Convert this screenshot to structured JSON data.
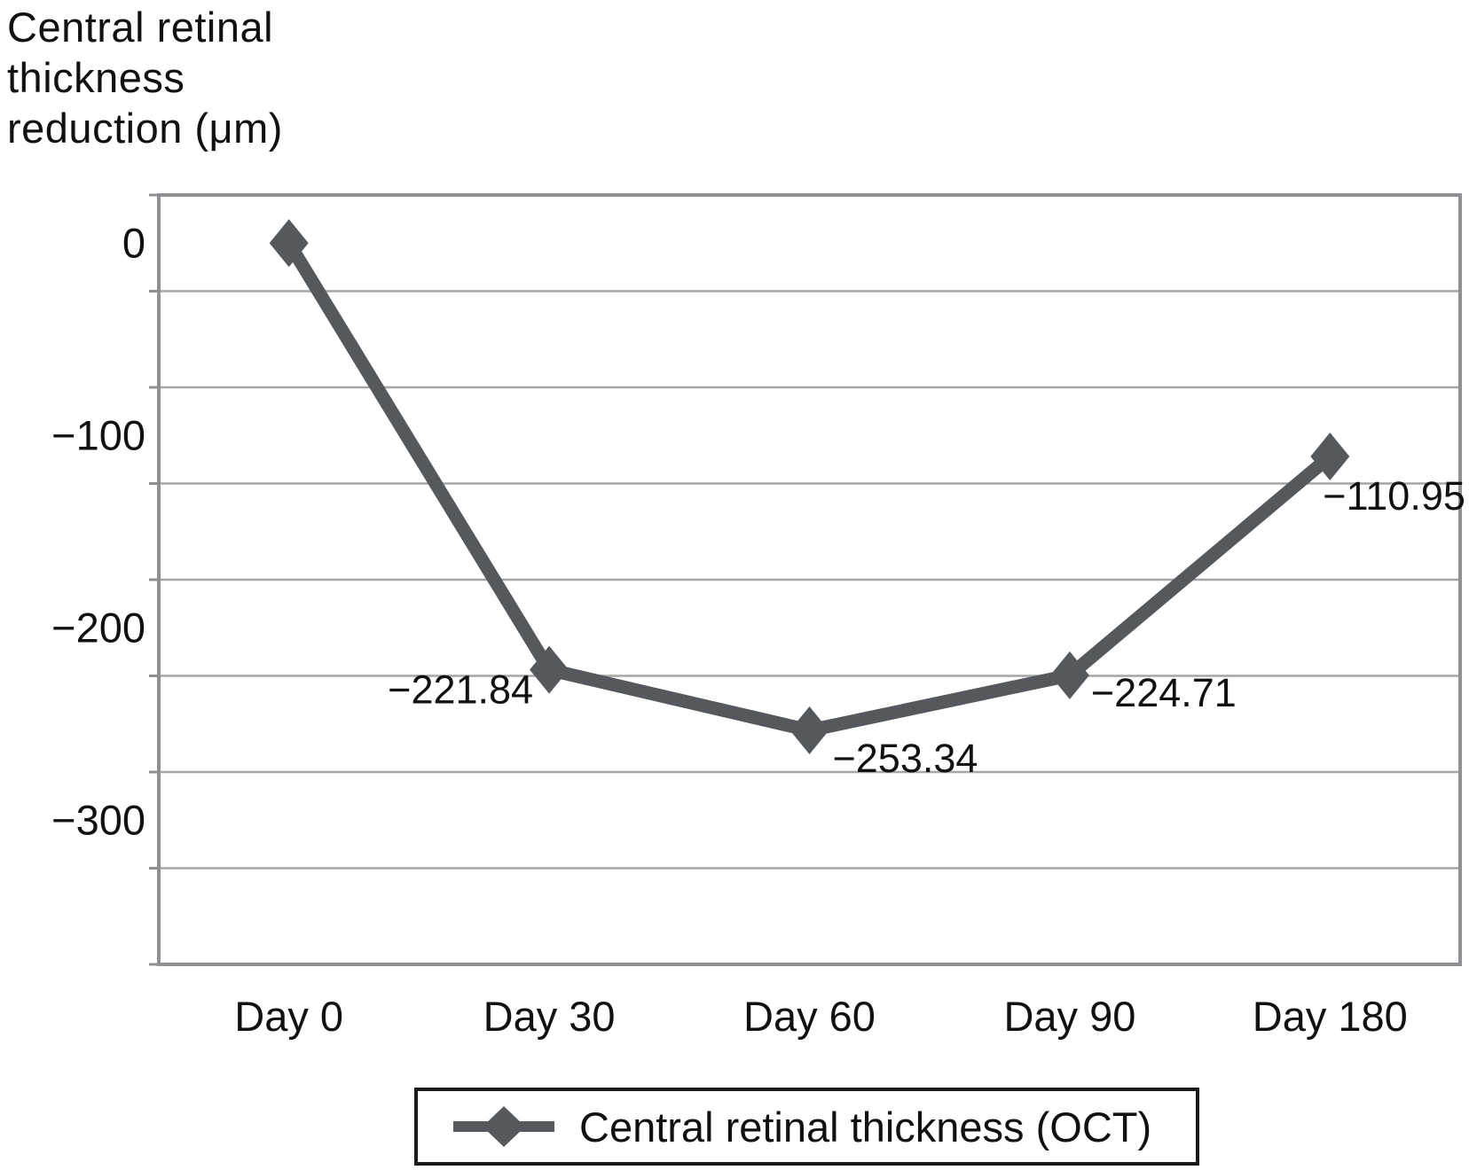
{
  "title": {
    "lines": [
      "Central retinal",
      "thickness",
      "reduction (μm)"
    ]
  },
  "colors": {
    "series": "#55585c",
    "gridline": "#a6a6a6",
    "plot_border": "#8e9093",
    "text": "#111111",
    "legend_border": "#1a1a1a",
    "background": "#ffffff"
  },
  "chart_data": {
    "type": "line",
    "title": "Central retinal thickness reduction (μm)",
    "categories": [
      "Day 0",
      "Day 30",
      "Day 60",
      "Day 90",
      "Day 180"
    ],
    "series": [
      {
        "name": "Central retinal thickness (OCT)",
        "values": [
          0,
          -221.84,
          -253.34,
          -224.71,
          -110.95
        ]
      }
    ],
    "point_labels": [
      "",
      "−221.84",
      "−253.34",
      "−224.71",
      "−110.95"
    ],
    "yticks": [
      {
        "value": 0,
        "label": "0"
      },
      {
        "value": -100,
        "label": "−100"
      },
      {
        "value": -200,
        "label": "−200"
      },
      {
        "value": -300,
        "label": "−300"
      }
    ],
    "ylim": [
      -375,
      25
    ],
    "gridline_step": 50,
    "grid": true,
    "marker": "diamond",
    "legend": {
      "position": "bottom",
      "label": "Central retinal thickness (OCT)"
    }
  }
}
